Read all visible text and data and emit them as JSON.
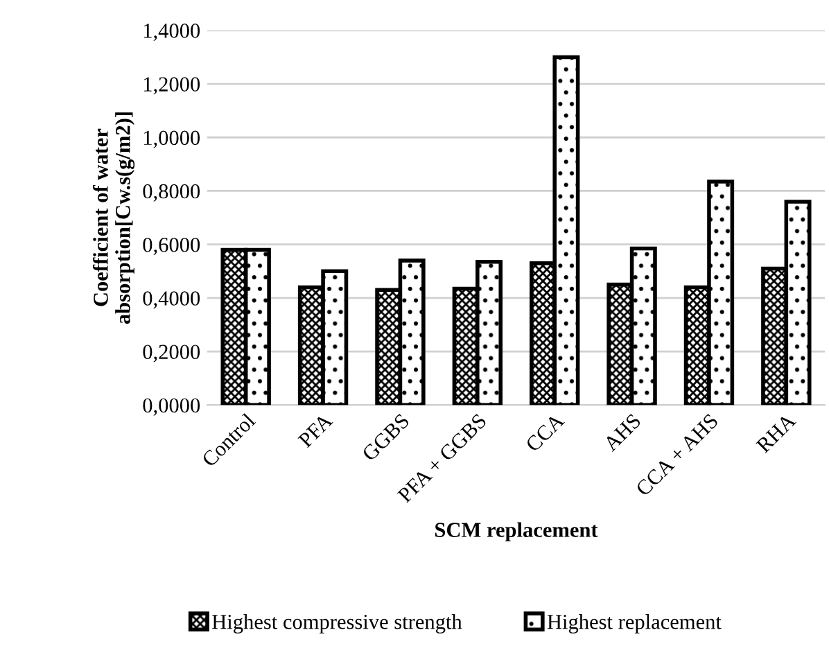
{
  "chart_data": {
    "type": "bar",
    "xlabel": "SCM replacement",
    "ylabel": "Coefficient of water\nabsorption[Cw.s(g/m2)]",
    "categories": [
      "Control",
      "PFA",
      "GGBS",
      "PFA + GGBS",
      "CCA",
      "AHS",
      "CCA + AHS",
      "RHA"
    ],
    "series": [
      {
        "name": "Highest compressive strength",
        "color": "#000000",
        "values": [
          0.58,
          0.44,
          0.43,
          0.435,
          0.53,
          0.45,
          0.44,
          0.51
        ]
      },
      {
        "name": "Highest replacement",
        "color": "#000000",
        "values": [
          0.58,
          0.5,
          0.54,
          0.535,
          1.3,
          0.585,
          0.835,
          0.76
        ]
      }
    ],
    "ylim": [
      0,
      1.4
    ],
    "yticks": [
      {
        "value": 0,
        "label": "0,0000"
      },
      {
        "value": 0.2,
        "label": "0,2000"
      },
      {
        "value": 0.4,
        "label": "0,4000"
      },
      {
        "value": 0.6,
        "label": "0,6000"
      },
      {
        "value": 0.8,
        "label": "0,8000"
      },
      {
        "value": 1.0,
        "label": "1,0000"
      },
      {
        "value": 1.2,
        "label": "1,2000"
      },
      {
        "value": 1.4,
        "label": "1,4000"
      }
    ],
    "grid": "y",
    "legend": "bottom"
  }
}
